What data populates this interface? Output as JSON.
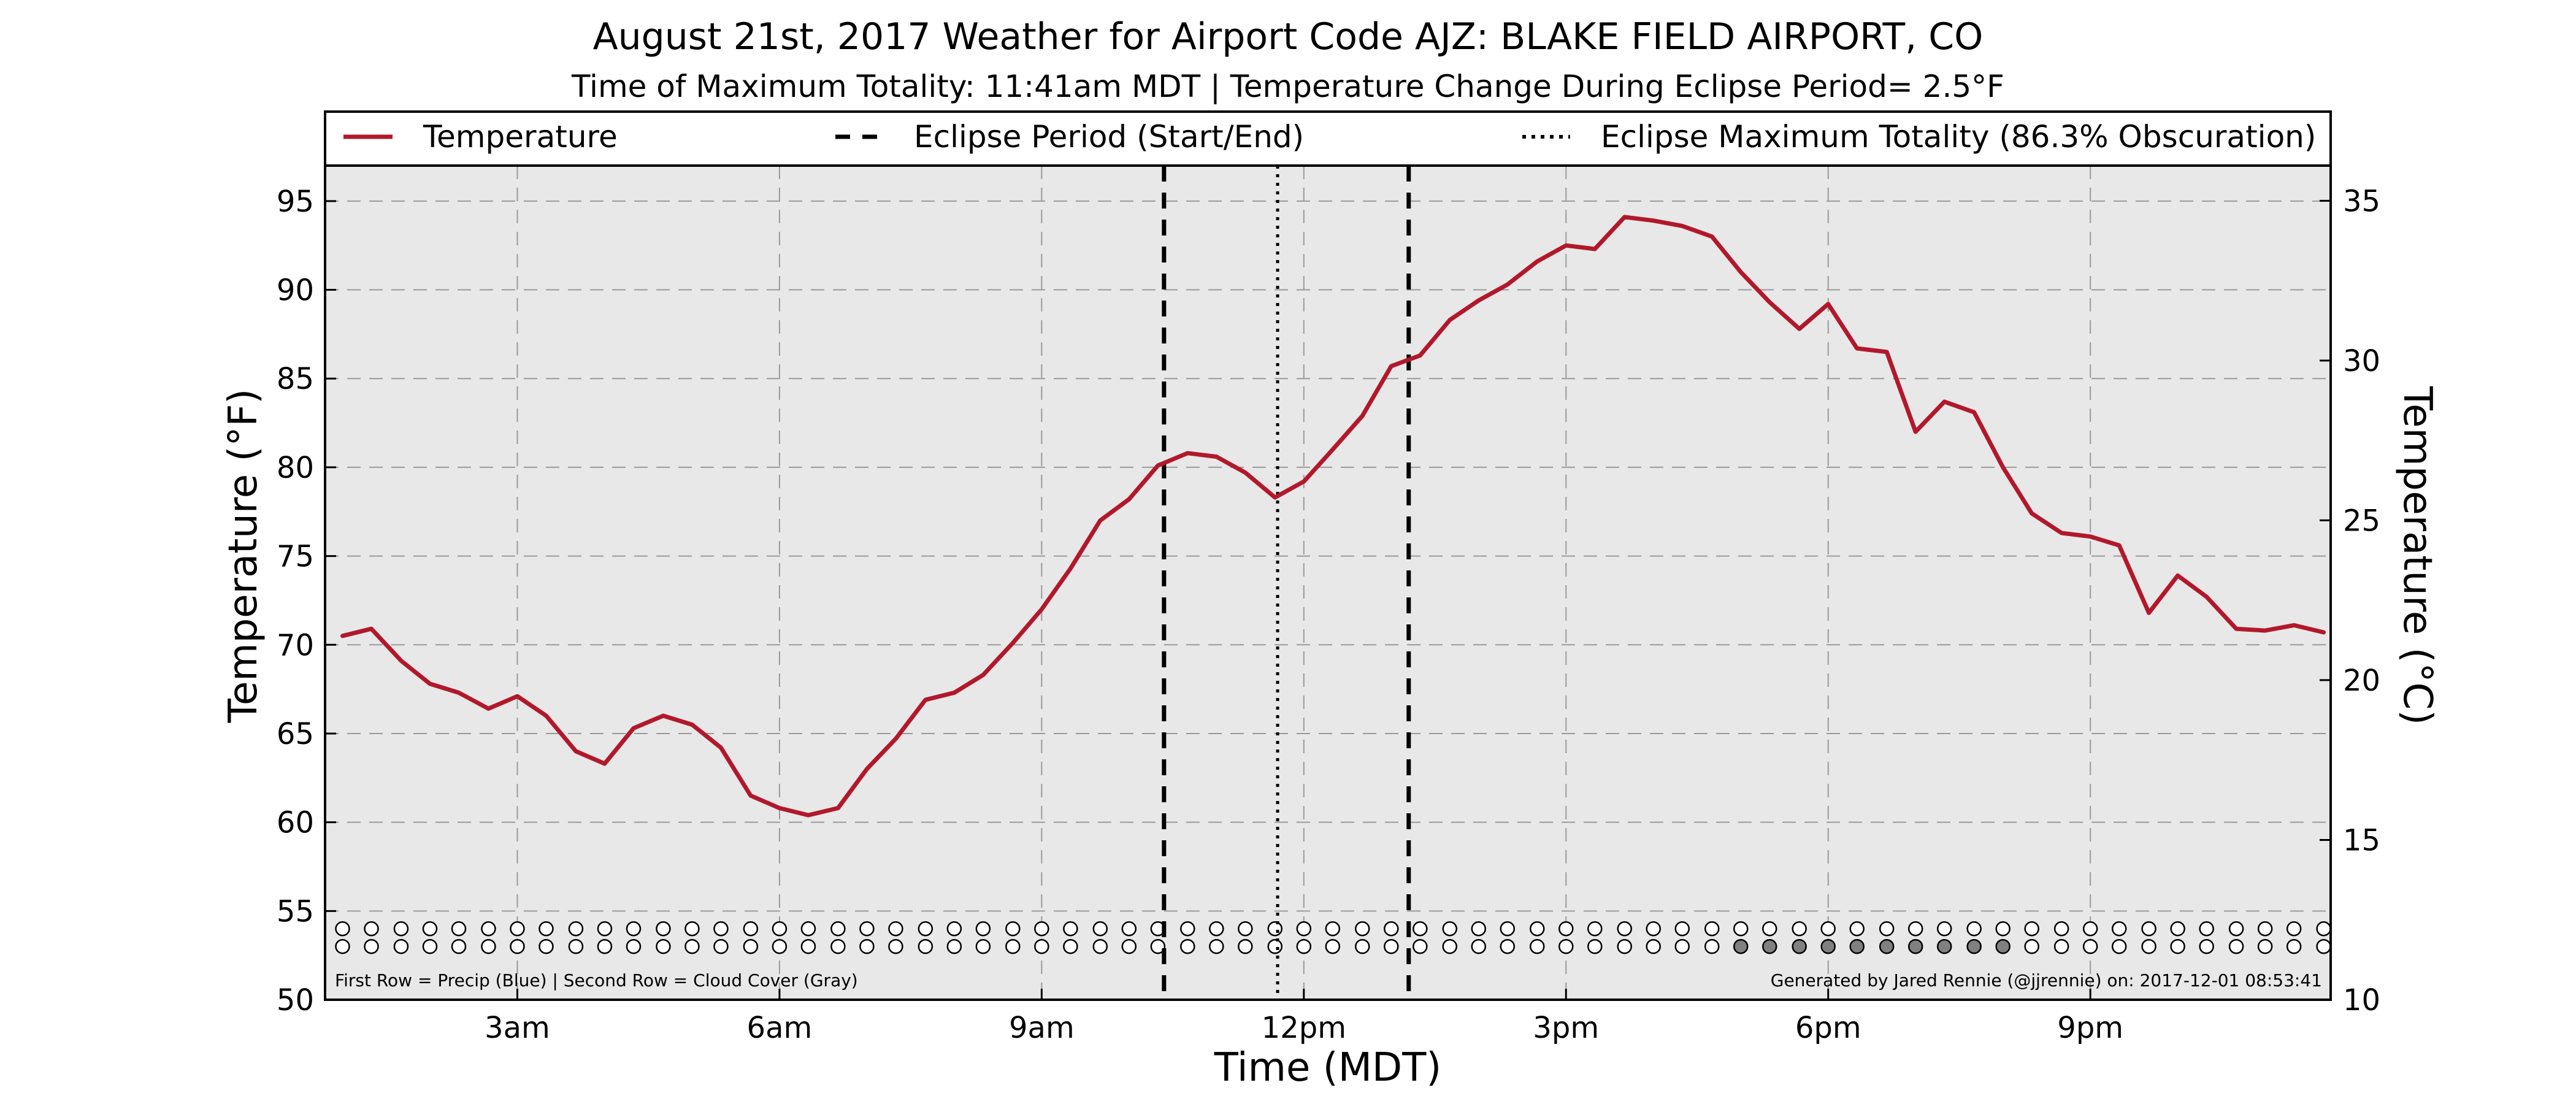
{
  "chart_data": {
    "type": "line",
    "title": "August 21st, 2017 Weather for Airport Code AJZ: BLAKE FIELD AIRPORT, CO",
    "subtitle": "Time of Maximum Totality: 11:41am MDT | Temperature Change During Eclipse Period= 2.5°F",
    "xlabel": "Time (MDT)",
    "ylabel": "Temperature (°F)",
    "ylabel_right": "Temperature (°C)",
    "x_range_hours": [
      0.8,
      23.75
    ],
    "ylim": [
      50,
      97
    ],
    "ylim_celsius": [
      10,
      36.1
    ],
    "x_ticks": [
      {
        "hour": 3,
        "label": "3am"
      },
      {
        "hour": 6,
        "label": "6am"
      },
      {
        "hour": 9,
        "label": "9am"
      },
      {
        "hour": 12,
        "label": "12pm"
      },
      {
        "hour": 15,
        "label": "3pm"
      },
      {
        "hour": 18,
        "label": "6pm"
      },
      {
        "hour": 21,
        "label": "9pm"
      }
    ],
    "y_ticks": [
      50,
      55,
      60,
      65,
      70,
      75,
      80,
      85,
      90,
      95
    ],
    "y_ticks_right": [
      10,
      15,
      20,
      25,
      30,
      35
    ],
    "grid": true,
    "legend_position": "top",
    "legend": [
      {
        "label": "Temperature",
        "style": "solid"
      },
      {
        "label": "Eclipse Period (Start/End)",
        "style": "dashed"
      },
      {
        "label": "Eclipse Maximum Totality (86.3% Obscuration)",
        "style": "dotted"
      }
    ],
    "series": [
      {
        "name": "Temperature",
        "x_hours": [
          1.0,
          1.33,
          1.67,
          2.0,
          2.33,
          2.67,
          3.0,
          3.33,
          3.67,
          4.0,
          4.33,
          4.67,
          5.0,
          5.33,
          5.67,
          6.0,
          6.33,
          6.67,
          7.0,
          7.33,
          7.67,
          8.0,
          8.33,
          8.67,
          9.0,
          9.33,
          9.67,
          10.0,
          10.33,
          10.67,
          11.0,
          11.33,
          11.67,
          12.0,
          12.33,
          12.67,
          13.0,
          13.33,
          13.67,
          14.0,
          14.33,
          14.67,
          15.0,
          15.33,
          15.67,
          16.0,
          16.33,
          16.67,
          17.0,
          17.33,
          17.67,
          18.0,
          18.33,
          18.67,
          19.0,
          19.33,
          19.67,
          20.0,
          20.33,
          20.67,
          21.0,
          21.33,
          21.67,
          22.0,
          22.33,
          22.67,
          23.0,
          23.33,
          23.67
        ],
        "values": [
          70.5,
          70.9,
          69.1,
          67.8,
          67.3,
          66.4,
          67.1,
          66.0,
          64.0,
          63.3,
          65.3,
          66.0,
          65.5,
          64.2,
          61.5,
          60.8,
          60.4,
          60.8,
          63.0,
          64.7,
          66.9,
          67.3,
          68.3,
          70.1,
          72.0,
          74.3,
          77.0,
          78.2,
          80.1,
          80.8,
          80.6,
          79.7,
          78.3,
          79.2,
          81.0,
          82.9,
          85.7,
          86.3,
          88.3,
          89.4,
          90.3,
          91.6,
          92.5,
          92.3,
          94.1,
          93.9,
          93.6,
          93.0,
          91.0,
          89.3,
          87.8,
          89.2,
          86.7,
          86.5,
          82.0,
          83.7,
          83.1,
          80.0,
          77.4,
          76.3,
          76.1,
          75.6,
          71.8,
          73.9,
          72.7,
          70.9,
          70.8,
          71.1,
          70.7
        ]
      }
    ],
    "eclipse_start_hour": 10.4,
    "eclipse_end_hour": 13.2,
    "eclipse_max_hour": 11.7,
    "marker_rows": [
      {
        "y_value": 54,
        "filled_indices": []
      },
      {
        "y_value": 53,
        "filled_indices": [
          48,
          49,
          50,
          51,
          52,
          53,
          54,
          55,
          56,
          57
        ]
      }
    ],
    "precip_color": "#1f3fbf",
    "cloud_color": "#808080",
    "line_color": "#b2182b",
    "plot_background": "#e8e8e8"
  },
  "notes": {
    "left": "First Row = Precip (Blue) | Second Row = Cloud Cover (Gray)",
    "right": "Generated by Jared Rennie (@jjrennie) on: 2017-12-01 08:53:41"
  }
}
